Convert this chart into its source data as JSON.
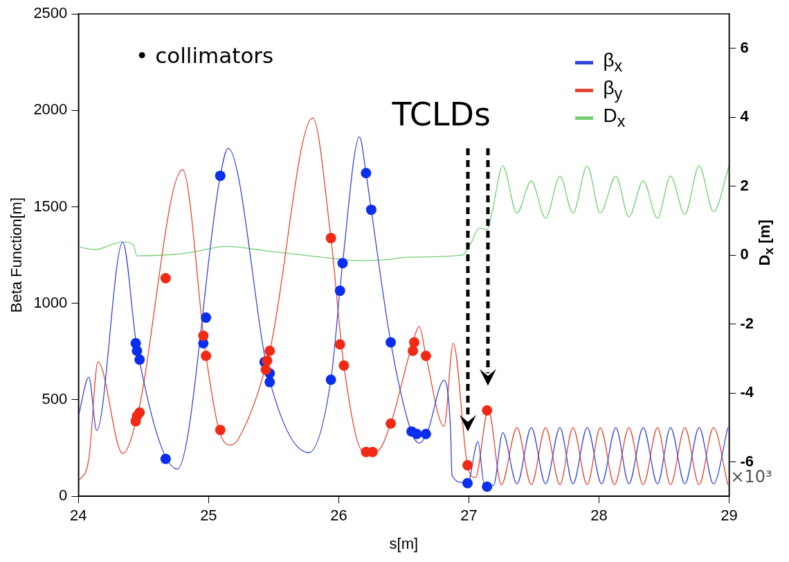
{
  "chart_data": {
    "type": "line",
    "xlabel": "s[m]",
    "ylabel": "Beta Function[m]",
    "y2label": "D$_{x}$ [m]",
    "xlim": [
      24,
      29
    ],
    "xticks": [
      24,
      25,
      26,
      27,
      28,
      29
    ],
    "ylim": [
      0,
      2500
    ],
    "yticks": [
      0,
      500,
      1000,
      1500,
      2000,
      2500
    ],
    "y2lim": [
      -7,
      7
    ],
    "y2ticks": [
      -6,
      -4,
      -2,
      0,
      2,
      4,
      6
    ],
    "legend": "top right",
    "annotations": [
      "• collimators",
      "TCLDs",
      "×10³"
    ],
    "series": [
      {
        "name": "β$_{x}$",
        "color": "#3346dc",
        "x": [
          24,
          24.08,
          24.14,
          24.34,
          24.45,
          24.76,
          25.09,
          25.15,
          25.47,
          25.77,
          25.94,
          26.03,
          26.16,
          26.21,
          26.25,
          26.4,
          26.56,
          26.62,
          26.68,
          26.81,
          26.86,
          26.87,
          26.95,
          26.99,
          27.07,
          27.12,
          27.19,
          27.26,
          27.37,
          27.48,
          27.59,
          27.7,
          27.8,
          27.91,
          28.02,
          28.13,
          28.23,
          28.34,
          28.45,
          28.55,
          28.66,
          28.77,
          28.88,
          28.99
        ],
        "values": [
          415,
          617,
          341,
          1316,
          768,
          141,
          1661,
          1804,
          600,
          226,
          604,
          1208,
          1862,
          1675,
          1485,
          798,
          330,
          276,
          330,
          602,
          337,
          111,
          72,
          65,
          283,
          57,
          57,
          330,
          64,
          356,
          64,
          356,
          64,
          356,
          64,
          356,
          64,
          356,
          64,
          356,
          64,
          356,
          64,
          356
        ]
      },
      {
        "name": "β$_{y}$",
        "color": "#e8452f",
        "x": [
          24,
          24.08,
          24.15,
          24.34,
          24.45,
          24.8,
          24.98,
          25.08,
          25.16,
          25.23,
          25.47,
          25.8,
          25.94,
          26.04,
          26.19,
          26.29,
          26.4,
          26.56,
          26.62,
          26.67,
          26.81,
          26.88,
          26.99,
          27.05,
          27.15,
          27.25,
          27.37,
          27.48,
          27.59,
          27.7,
          27.8,
          27.91,
          28.01,
          28.12,
          28.23,
          28.34,
          28.45,
          28.55,
          28.66,
          28.77,
          28.88,
          28.99
        ],
        "values": [
          76,
          194,
          696,
          222,
          409,
          1693,
          728,
          344,
          265,
          298,
          754,
          1961,
          1338,
          678,
          233,
          233,
          377,
          775,
          880,
          728,
          362,
          794,
          158,
          97,
          448,
          60,
          356,
          60,
          356,
          60,
          356,
          60,
          356,
          60,
          356,
          60,
          356,
          60,
          356,
          60,
          356,
          60
        ]
      },
      {
        "name": "D$_{x}$",
        "axis": "y2",
        "color": "#74cf74",
        "x": [
          24,
          24.13,
          24.34,
          24.42,
          24.45,
          24.82,
          25.14,
          25.43,
          25.84,
          26.18,
          26.38,
          26.54,
          26.95,
          27.01,
          27.08,
          27.14,
          27.18,
          27.26,
          27.37,
          27.48,
          27.59,
          27.7,
          27.8,
          27.91,
          28.01,
          28.13,
          28.23,
          28.34,
          28.45,
          28.55,
          28.66,
          28.77,
          28.88,
          29
        ],
        "values": [
          0.24,
          0.16,
          0.38,
          0.31,
          -0.02,
          0.05,
          0.25,
          0.13,
          -0.05,
          -0.16,
          -0.13,
          -0.06,
          0,
          0.3,
          0.78,
          0.74,
          1.26,
          2.59,
          1.22,
          2.15,
          1.07,
          2.29,
          1.22,
          2.59,
          1.22,
          2.29,
          1.11,
          2.15,
          1.07,
          2.29,
          1.18,
          2.59,
          1.26,
          2.59
        ]
      },
      {
        "type": "scatter",
        "marker": "circle",
        "color": "#0a2ef0",
        "x": [
          24.44,
          24.45,
          24.47,
          24.67,
          24.96,
          24.98,
          25.09,
          25.43,
          25.47,
          25.47,
          25.94,
          26.01,
          26.03,
          26.21,
          26.25,
          26.4,
          26.56,
          26.6,
          26.67,
          26.99,
          27.14
        ],
        "values": [
          793,
          754,
          708,
          194,
          793,
          926,
          1661,
          696,
          637,
          592,
          604,
          1065,
          1208,
          1675,
          1485,
          798,
          336,
          323,
          323,
          68,
          50
        ]
      },
      {
        "type": "scatter",
        "marker": "circle",
        "color": "#f02a14",
        "x": [
          24.44,
          24.45,
          24.47,
          24.67,
          24.96,
          24.98,
          25.09,
          25.44,
          25.45,
          25.47,
          25.94,
          26.01,
          26.04,
          26.21,
          26.26,
          26.4,
          26.57,
          26.58,
          26.67,
          26.99,
          27.14
        ],
        "values": [
          389,
          416,
          434,
          1130,
          832,
          728,
          344,
          656,
          703,
          754,
          1338,
          787,
          678,
          230,
          230,
          377,
          754,
          798,
          728,
          161,
          445
        ]
      }
    ]
  }
}
